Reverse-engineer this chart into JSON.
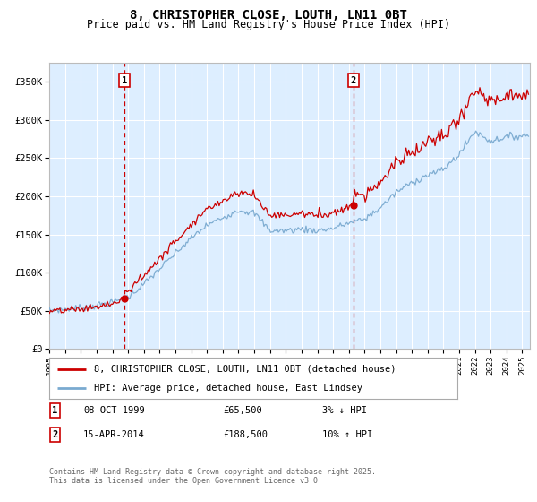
{
  "title": "8, CHRISTOPHER CLOSE, LOUTH, LN11 0BT",
  "subtitle": "Price paid vs. HM Land Registry's House Price Index (HPI)",
  "ylabel_ticks": [
    "£0",
    "£50K",
    "£100K",
    "£150K",
    "£200K",
    "£250K",
    "£300K",
    "£350K"
  ],
  "ytick_vals": [
    0,
    50000,
    100000,
    150000,
    200000,
    250000,
    300000,
    350000
  ],
  "ylim": [
    0,
    375000
  ],
  "xlim_start": 1995.0,
  "xlim_end": 2025.5,
  "xtick_years": [
    1995,
    1996,
    1997,
    1998,
    1999,
    2000,
    2001,
    2002,
    2003,
    2004,
    2005,
    2006,
    2007,
    2008,
    2009,
    2010,
    2011,
    2012,
    2013,
    2014,
    2015,
    2016,
    2017,
    2018,
    2019,
    2020,
    2021,
    2022,
    2023,
    2024,
    2025
  ],
  "marker1_x": 1999.77,
  "marker1_y": 65500,
  "marker1_label": "1",
  "marker2_x": 2014.29,
  "marker2_y": 188500,
  "marker2_label": "2",
  "legend_line1": "8, CHRISTOPHER CLOSE, LOUTH, LN11 0BT (detached house)",
  "legend_line2": "HPI: Average price, detached house, East Lindsey",
  "ann1_date": "08-OCT-1999",
  "ann1_price": "£65,500",
  "ann1_hpi": "3% ↓ HPI",
  "ann2_date": "15-APR-2014",
  "ann2_price": "£188,500",
  "ann2_hpi": "10% ↑ HPI",
  "footer": "Contains HM Land Registry data © Crown copyright and database right 2025.\nThis data is licensed under the Open Government Licence v3.0.",
  "hpi_color": "#7aaad0",
  "price_color": "#cc0000",
  "marker_color": "#cc0000",
  "bg_color": "#ddeeff",
  "grid_color": "#ffffff",
  "marker_box_color": "#cc0000"
}
